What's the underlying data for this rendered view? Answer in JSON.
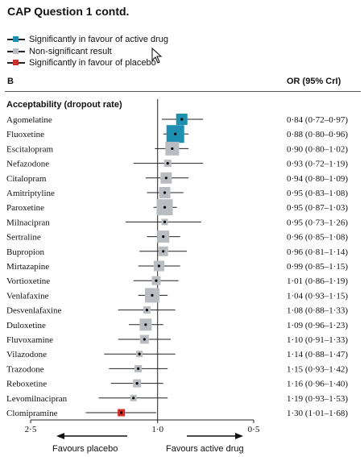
{
  "page_title": "CAP Question 1 contd.",
  "legend": [
    {
      "label": "Significantly in favour of active drug",
      "color": "#1d8fb0"
    },
    {
      "label": "Non-significant result",
      "color": "#b9bcc0"
    },
    {
      "label": "Significantly in favour of placebo",
      "color": "#c8302c"
    }
  ],
  "panel_label": "B",
  "or_header": "OR (95% CrI)",
  "section_label": "Acceptability (dropout rate)",
  "favours_placebo": "Favours placebo",
  "favours_active": "Favours active drug",
  "chart_data": {
    "type": "forest",
    "xscale": "log-reversed",
    "xlim": [
      2.5,
      0.5
    ],
    "ticks": [
      {
        "value": 2.5,
        "label": "2·5"
      },
      {
        "value": 1.0,
        "label": "1·0"
      },
      {
        "value": 0.5,
        "label": "0·5"
      }
    ],
    "reference_line": 1.0,
    "rows": [
      {
        "name": "Agomelatine",
        "or": 0.84,
        "lo": 0.72,
        "hi": 0.97,
        "text": "0·84 (0·72–0·97)",
        "sig": "active",
        "weight": 14
      },
      {
        "name": "Fluoxetine",
        "or": 0.88,
        "lo": 0.8,
        "hi": 0.96,
        "text": "0·88 (0·80–0·96)",
        "sig": "active",
        "weight": 22
      },
      {
        "name": "Escitalopram",
        "or": 0.9,
        "lo": 0.8,
        "hi": 1.02,
        "text": "0·90 (0·80–1·02)",
        "sig": "none",
        "weight": 17
      },
      {
        "name": "Nefazodone",
        "or": 0.93,
        "lo": 0.72,
        "hi": 1.19,
        "text": "0·93 (0·72–1·19)",
        "sig": "none",
        "weight": 9
      },
      {
        "name": "Citalopram",
        "or": 0.94,
        "lo": 0.8,
        "hi": 1.09,
        "text": "0·94 (0·80–1·09)",
        "sig": "none",
        "weight": 14
      },
      {
        "name": "Amitriptyline",
        "or": 0.95,
        "lo": 0.83,
        "hi": 1.08,
        "text": "0·95 (0·83–1·08)",
        "sig": "none",
        "weight": 14
      },
      {
        "name": "Paroxetine",
        "or": 0.95,
        "lo": 0.87,
        "hi": 1.03,
        "text": "0·95 (0·87–1·03)",
        "sig": "none",
        "weight": 20
      },
      {
        "name": "Milnacipran",
        "or": 0.95,
        "lo": 0.73,
        "hi": 1.26,
        "text": "0·95 (0·73–1·26)",
        "sig": "none",
        "weight": 8
      },
      {
        "name": "Sertraline",
        "or": 0.96,
        "lo": 0.85,
        "hi": 1.08,
        "text": "0·96 (0·85–1·08)",
        "sig": "none",
        "weight": 15
      },
      {
        "name": "Bupropion",
        "or": 0.96,
        "lo": 0.81,
        "hi": 1.14,
        "text": "0·96 (0·81–1·14)",
        "sig": "none",
        "weight": 12
      },
      {
        "name": "Mirtazapine",
        "or": 0.99,
        "lo": 0.85,
        "hi": 1.15,
        "text": "0·99 (0·85–1·15)",
        "sig": "none",
        "weight": 13
      },
      {
        "name": "Vortioxetine",
        "or": 1.01,
        "lo": 0.86,
        "hi": 1.19,
        "text": "1·01 (0·86–1·19)",
        "sig": "none",
        "weight": 11
      },
      {
        "name": "Venlafaxine",
        "or": 1.04,
        "lo": 0.93,
        "hi": 1.15,
        "text": "1·04 (0·93–1·15)",
        "sig": "none",
        "weight": 18
      },
      {
        "name": "Desvenlafaxine",
        "or": 1.08,
        "lo": 0.88,
        "hi": 1.33,
        "text": "1·08 (0·88–1·33)",
        "sig": "none",
        "weight": 9
      },
      {
        "name": "Duloxetine",
        "or": 1.09,
        "lo": 0.96,
        "hi": 1.23,
        "text": "1·09 (0·96–1·23)",
        "sig": "none",
        "weight": 15
      },
      {
        "name": "Fluvoxamine",
        "or": 1.1,
        "lo": 0.91,
        "hi": 1.33,
        "text": "1·10 (0·91–1·33)",
        "sig": "none",
        "weight": 11
      },
      {
        "name": "Vilazodone",
        "or": 1.14,
        "lo": 0.88,
        "hi": 1.47,
        "text": "1·14 (0·88–1·47)",
        "sig": "none",
        "weight": 8
      },
      {
        "name": "Trazodone",
        "or": 1.15,
        "lo": 0.93,
        "hi": 1.42,
        "text": "1·15 (0·93–1·42)",
        "sig": "none",
        "weight": 9
      },
      {
        "name": "Reboxetine",
        "or": 1.16,
        "lo": 0.96,
        "hi": 1.4,
        "text": "1·16 (0·96–1·40)",
        "sig": "none",
        "weight": 10
      },
      {
        "name": "Levomilnacipran",
        "or": 1.19,
        "lo": 0.93,
        "hi": 1.53,
        "text": "1·19 (0·93–1·53)",
        "sig": "none",
        "weight": 8
      },
      {
        "name": "Clomipramine",
        "or": 1.3,
        "lo": 1.01,
        "hi": 1.68,
        "text": "1·30 (1·01–1·68)",
        "sig": "placebo",
        "weight": 9
      }
    ],
    "colors": {
      "active": "#1d8fb0",
      "none": "#b9bcc0",
      "placebo": "#c8302c"
    }
  }
}
